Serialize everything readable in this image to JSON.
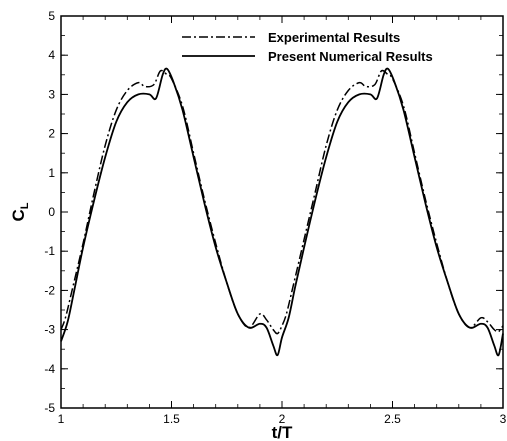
{
  "chart_data": {
    "type": "line",
    "xlabel": "t/T",
    "ylabel_main": "C",
    "ylabel_sub": "L",
    "xlim": [
      1,
      3
    ],
    "ylim": [
      -5,
      5
    ],
    "x_ticks": [
      "1",
      "1.5",
      "2",
      "2.5",
      "3"
    ],
    "y_ticks": [
      "-5",
      "-4",
      "-3",
      "-2",
      "-1",
      "0",
      "1",
      "2",
      "3",
      "4",
      "5"
    ],
    "grid": false,
    "legend_position": "top-right",
    "series": [
      {
        "name": "Experimental Results",
        "style": "dash-dot",
        "x": [
          1.0,
          1.02,
          1.05,
          1.1,
          1.15,
          1.2,
          1.25,
          1.3,
          1.35,
          1.38,
          1.42,
          1.45,
          1.48,
          1.5,
          1.55,
          1.6,
          1.65,
          1.7,
          1.75,
          1.8,
          1.85,
          1.9,
          1.93,
          1.96,
          1.98,
          2.0,
          2.02,
          2.05,
          2.1,
          2.15,
          2.2,
          2.25,
          2.3,
          2.35,
          2.38,
          2.42,
          2.45,
          2.48,
          2.5,
          2.55,
          2.6,
          2.65,
          2.7,
          2.75,
          2.8,
          2.85,
          2.9,
          2.93,
          2.96,
          2.98,
          3.0
        ],
        "y": [
          -3.0,
          -2.7,
          -2.0,
          -0.8,
          0.5,
          1.7,
          2.6,
          3.1,
          3.3,
          3.2,
          3.25,
          3.6,
          3.5,
          3.4,
          2.7,
          1.5,
          0.3,
          -0.8,
          -1.8,
          -2.6,
          -2.95,
          -2.6,
          -2.75,
          -3.0,
          -3.1,
          -2.9,
          -2.6,
          -1.9,
          -0.7,
          0.5,
          1.7,
          2.6,
          3.1,
          3.3,
          3.2,
          3.25,
          3.6,
          3.5,
          3.4,
          2.7,
          1.5,
          0.3,
          -0.8,
          -1.8,
          -2.6,
          -2.95,
          -2.7,
          -2.8,
          -3.0,
          -3.05,
          -2.9
        ]
      },
      {
        "name": "Present Numerical Results",
        "style": "solid",
        "x": [
          1.0,
          1.03,
          1.06,
          1.1,
          1.15,
          1.2,
          1.25,
          1.3,
          1.35,
          1.4,
          1.43,
          1.46,
          1.48,
          1.51,
          1.55,
          1.6,
          1.65,
          1.7,
          1.75,
          1.8,
          1.85,
          1.9,
          1.93,
          1.96,
          1.98,
          2.0,
          2.03,
          2.06,
          2.1,
          2.15,
          2.2,
          2.25,
          2.3,
          2.35,
          2.4,
          2.43,
          2.46,
          2.48,
          2.51,
          2.55,
          2.6,
          2.65,
          2.7,
          2.75,
          2.8,
          2.85,
          2.9,
          2.93,
          2.96,
          2.98,
          3.0
        ],
        "y": [
          -3.3,
          -2.8,
          -2.0,
          -0.9,
          0.3,
          1.4,
          2.3,
          2.8,
          3.0,
          3.0,
          2.9,
          3.5,
          3.65,
          3.3,
          2.6,
          1.4,
          0.2,
          -0.9,
          -1.8,
          -2.6,
          -2.95,
          -2.85,
          -2.95,
          -3.4,
          -3.65,
          -3.2,
          -2.7,
          -1.9,
          -0.9,
          0.3,
          1.4,
          2.3,
          2.8,
          3.0,
          3.0,
          2.9,
          3.5,
          3.65,
          3.3,
          2.6,
          1.4,
          0.2,
          -0.9,
          -1.8,
          -2.6,
          -2.95,
          -2.85,
          -2.95,
          -3.4,
          -3.65,
          -3.1
        ]
      }
    ]
  }
}
